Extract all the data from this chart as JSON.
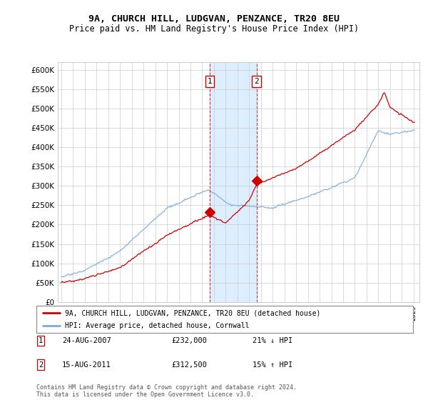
{
  "title": "9A, CHURCH HILL, LUDGVAN, PENZANCE, TR20 8EU",
  "subtitle": "Price paid vs. HM Land Registry's House Price Index (HPI)",
  "legend_line1": "9A, CHURCH HILL, LUDGVAN, PENZANCE, TR20 8EU (detached house)",
  "legend_line2": "HPI: Average price, detached house, Cornwall",
  "footnote": "Contains HM Land Registry data © Crown copyright and database right 2024.\nThis data is licensed under the Open Government Licence v3.0.",
  "table": [
    {
      "num": "1",
      "date": "24-AUG-2007",
      "price": "£232,000",
      "hpi": "21% ↓ HPI"
    },
    {
      "num": "2",
      "date": "15-AUG-2011",
      "price": "£312,500",
      "hpi": "15% ↑ HPI"
    }
  ],
  "sale1_year": 2007.62,
  "sale1_price": 232000,
  "sale2_year": 2011.62,
  "sale2_price": 312500,
  "red_line_color": "#cc0000",
  "blue_line_color": "#7aaadd",
  "shade_color": "#ddeeff",
  "grid_color": "#cccccc",
  "background_color": "#ffffff",
  "ylim": [
    0,
    620000
  ],
  "xlim_start": 1995,
  "xlim_end": 2025.5
}
